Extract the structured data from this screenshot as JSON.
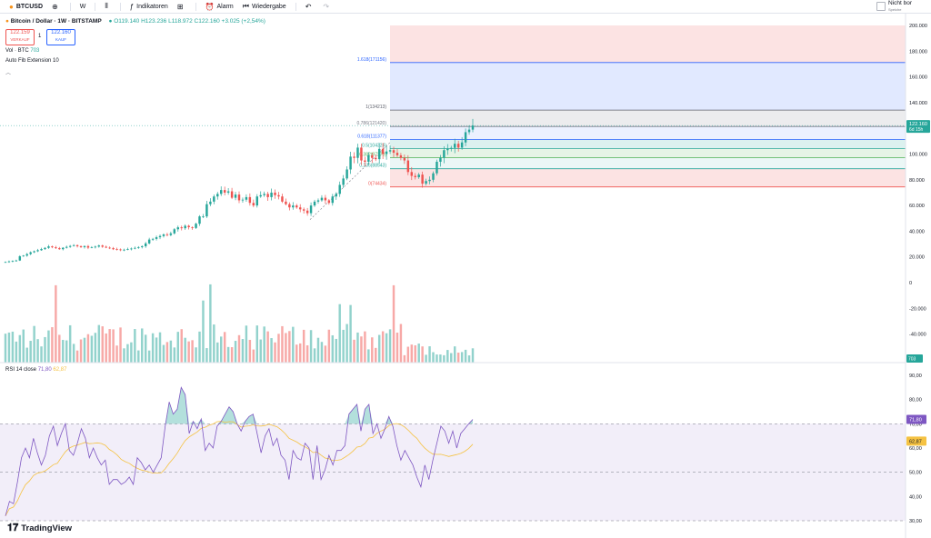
{
  "toolbar": {
    "symbol": "BTCUSD",
    "add_icon": "plus-circle-icon",
    "interval": "W",
    "chart_type_icon": "candles-icon",
    "indicators_label": "Indikatoren",
    "layout_icon": "grid-icon",
    "alert_label": "Alarm",
    "replay_label": "Wiedergabe",
    "undo_icon": "undo-icon",
    "redo_icon": "redo-icon",
    "status_text": "Nicht bor",
    "status_subtext": "Speiche"
  },
  "legend": {
    "title": "Bitcoin / Dollar · 1W · BITSTAMP",
    "ohlc": "O119.140 H123.236 L118.972 C122.160 +3.025 (+2,54%)",
    "sell_price": "122.159",
    "sell_label": "VERKAUF",
    "spread": "1",
    "buy_price": "122.160",
    "buy_label": "KAUF",
    "volume_label": "Vol · BTC",
    "volume_value": "703",
    "fib_label": "Auto Fib Extension 10"
  },
  "price_axis": {
    "ticks": [
      "200.000",
      "180.000",
      "160.000",
      "140.000",
      "120.000",
      "100.000",
      "80.000",
      "60.000",
      "40.000",
      "20.000",
      "0",
      "-20.000",
      "-40.000"
    ],
    "current_price": "122.160",
    "countdown": "6d 15h",
    "volume_badge": "703"
  },
  "fib_levels": [
    {
      "label": "1.618(171156)",
      "value": 171156
    },
    {
      "label": "1(134213)",
      "value": 134213
    },
    {
      "label": "0.786(121420)",
      "value": 121420
    },
    {
      "label": "0.618(111377)",
      "value": 111377
    },
    {
      "label": "0.5(104324)",
      "value": 104324
    },
    {
      "label": "0.382(97270)",
      "value": 97270
    },
    {
      "label": "0.236(88543)",
      "value": 88543
    },
    {
      "label": "0(74434)",
      "value": 74434
    }
  ],
  "rsi": {
    "label": "RSI 14 close",
    "value": "71,80",
    "ma_value": "62,87",
    "ticks": [
      "90,00",
      "80,00",
      "70,00",
      "60,00",
      "50,00",
      "40,00",
      "30,00"
    ]
  },
  "brand": {
    "name": "TradingView"
  },
  "colors": {
    "up": "#26a69a",
    "down": "#ef5350",
    "rsi": "#7e57c2",
    "rsi_ma": "#f5c242",
    "fib_blue": "#2962ff"
  },
  "chart_data": {
    "type": "candlestick",
    "close": [
      16,
      16.5,
      17,
      17.2,
      20.5,
      21,
      22.2,
      23.6,
      24.4,
      25.2,
      26.1,
      27.0,
      28.2,
      27.5,
      26.8,
      26.0,
      27.1,
      27.8,
      28.5,
      29.1,
      28.3,
      27.6,
      28.4,
      27.2,
      27.4,
      28.0,
      28.9,
      27.9,
      27.2,
      26.8,
      26.0,
      25.8,
      25.4,
      25.6,
      26.1,
      26.5,
      27.0,
      27.6,
      28.3,
      30.5,
      33.5,
      34.0,
      35.3,
      36.2,
      37.5,
      37.0,
      38.3,
      41.5,
      43.0,
      42.3,
      44.2,
      43.1,
      42.5,
      45.8,
      51.5,
      51.5,
      61,
      63,
      67,
      69,
      72,
      70,
      71,
      66,
      68.5,
      64,
      64.5,
      66.5,
      62,
      60,
      67,
      68,
      69,
      66.5,
      70,
      68,
      67,
      63,
      61,
      58.5,
      60,
      58.5,
      57,
      56,
      54,
      60,
      63,
      64,
      66,
      64,
      62,
      67,
      69,
      76,
      81,
      88,
      98,
      97,
      105,
      95,
      94,
      99,
      97,
      96,
      104,
      100,
      102,
      103,
      101,
      99,
      97,
      95,
      86,
      83,
      82,
      84,
      77,
      79,
      80,
      85,
      94,
      97,
      103,
      104,
      104.8,
      108,
      105,
      109,
      117,
      119,
      122.16
    ],
    "volume_max_approx": 28000,
    "rsi": [
      32,
      38,
      37,
      46,
      56,
      60,
      56,
      64,
      58,
      53,
      57,
      65,
      69,
      61,
      66,
      70,
      59,
      57,
      62,
      68,
      64,
      56,
      60,
      56,
      53,
      55,
      45,
      47,
      47,
      45,
      46,
      48,
      45,
      56,
      54,
      51,
      53,
      50,
      53,
      56,
      69,
      79,
      74,
      76,
      85,
      82,
      66,
      71,
      68,
      72,
      59,
      62,
      60,
      69,
      71,
      74,
      77,
      75,
      70,
      67,
      71,
      73,
      74,
      66,
      58,
      65,
      68,
      61,
      64,
      57,
      55,
      47,
      59,
      56,
      55,
      62,
      60,
      47,
      61,
      47,
      51,
      57,
      53,
      59,
      59,
      61,
      74,
      76,
      78,
      67,
      76,
      78,
      66,
      70,
      64,
      68,
      73,
      69,
      61,
      55,
      59,
      56,
      53,
      48,
      44,
      53,
      47,
      55,
      62,
      69,
      67,
      62,
      67,
      60,
      66,
      68,
      70,
      71.8
    ],
    "ylim_price": [
      -40000,
      200000
    ],
    "ylim_rsi": [
      30,
      90
    ]
  }
}
